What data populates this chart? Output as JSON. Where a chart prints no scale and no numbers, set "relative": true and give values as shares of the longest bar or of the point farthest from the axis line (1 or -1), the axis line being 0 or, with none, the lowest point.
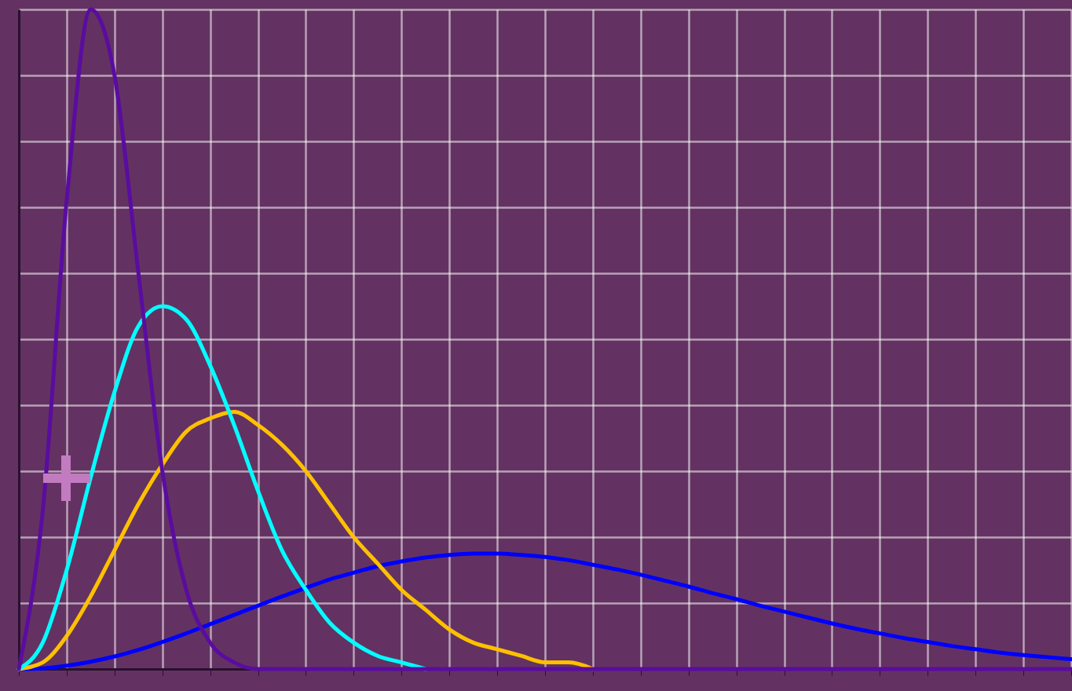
{
  "chart_data": {
    "type": "line",
    "relative": true,
    "grid": true,
    "categories": [
      null,
      null,
      null,
      null,
      null,
      null,
      null,
      null,
      null,
      null,
      null,
      null,
      null,
      null,
      null,
      null,
      null,
      null,
      null,
      null,
      null,
      null,
      null,
      null,
      null,
      null,
      null,
      null,
      null,
      null,
      null,
      null,
      null,
      null,
      null,
      null,
      null,
      null,
      null,
      null,
      null,
      null,
      null,
      null,
      null
    ],
    "series": [
      {
        "color": "#0000ff",
        "values": [
          0,
          0.001,
          0.005,
          0.011,
          0.019,
          0.029,
          0.041,
          0.054,
          0.068,
          0.082,
          0.096,
          0.11,
          0.123,
          0.136,
          0.146,
          0.156,
          0.163,
          0.169,
          0.173,
          0.175,
          0.175,
          0.173,
          0.17,
          0.165,
          0.158,
          0.151,
          0.143,
          0.134,
          0.125,
          0.115,
          0.106,
          0.096,
          0.087,
          0.078,
          0.069,
          0.061,
          0.054,
          0.047,
          0.041,
          0.035,
          0.03,
          0.025,
          0.021,
          0.018,
          0.015
        ]
      },
      {
        "color": "#ffc000",
        "values": [
          0,
          0.01,
          0.05,
          0.11,
          0.18,
          0.25,
          0.31,
          0.36,
          0.38,
          0.39,
          0.37,
          0.34,
          0.3,
          0.25,
          0.2,
          0.16,
          0.12,
          0.09,
          0.06,
          0.04,
          0.03,
          0.02,
          0.01,
          0.01,
          0,
          null,
          null,
          null,
          null,
          null,
          null,
          null,
          null,
          null,
          null,
          null,
          null,
          null,
          null,
          null,
          null,
          null,
          null,
          null,
          null
        ]
      },
      {
        "color": "#00ffff",
        "values": [
          0,
          0.04,
          0.15,
          0.29,
          0.42,
          0.52,
          0.55,
          0.53,
          0.46,
          0.37,
          0.27,
          0.18,
          0.12,
          0.07,
          0.04,
          0.02,
          0.01,
          0,
          null,
          null,
          null,
          null,
          null,
          null,
          null,
          null,
          null,
          null,
          null,
          null,
          null,
          null,
          null,
          null,
          null,
          null,
          null,
          null,
          null,
          null,
          null,
          null,
          null,
          null,
          null
        ]
      },
      {
        "color": "#5a0ca0",
        "values": [
          0,
          0.24,
          0.71,
          1,
          0.9,
          0.6,
          0.3,
          0.12,
          0.04,
          0.01,
          0,
          0,
          0,
          0,
          0,
          0,
          0,
          0,
          0,
          0,
          0,
          0,
          0,
          0,
          0,
          0,
          0,
          0,
          0,
          0,
          0,
          0,
          0,
          0,
          0,
          0,
          0,
          0,
          0,
          0,
          0,
          0,
          0,
          0,
          0
        ]
      }
    ]
  }
}
